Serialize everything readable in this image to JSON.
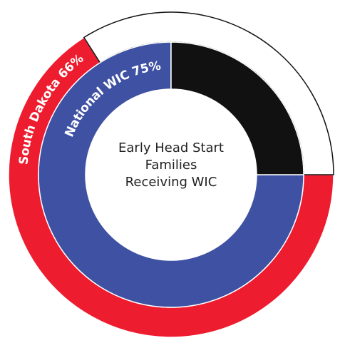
{
  "chart_data": {
    "type": "donut",
    "title": "Early Head Start Families Receiving WIC",
    "series": [
      {
        "values": [
          66,
          34
        ],
        "colors": [
          "#ed1c2e",
          "#ffffff"
        ],
        "value_labels": [
          "South Dakota 66%",
          null
        ]
      },
      {
        "values": [
          75,
          25
        ],
        "colors": [
          "#3f51a3",
          "#111111"
        ],
        "value_labels": [
          "National WIC 75%",
          null
        ]
      }
    ]
  }
}
